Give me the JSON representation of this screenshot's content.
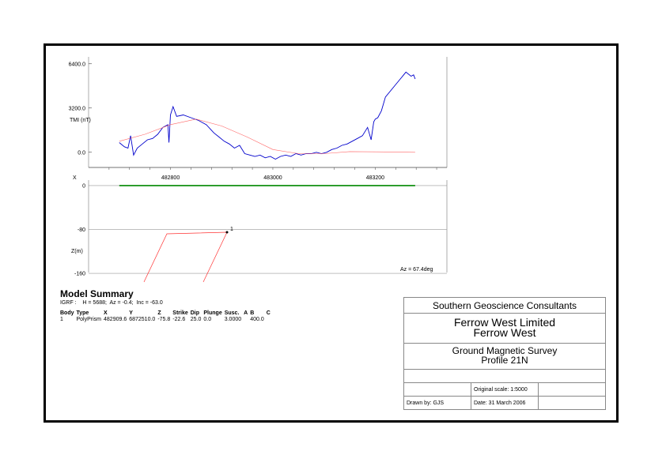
{
  "chart_data": [
    {
      "type": "line",
      "title": "",
      "xlabel": "",
      "ylabel": "TMI (nT)",
      "xlim": [
        482640,
        483340
      ],
      "ylim": [
        -1100,
        6900
      ],
      "yticks": [
        {
          "value": 6400,
          "label": "6400.0"
        },
        {
          "value": 3200,
          "label": "3200.0"
        },
        {
          "value": 0,
          "label": "0.0"
        }
      ],
      "xticks": [
        {
          "value": 482800,
          "label": "482800"
        },
        {
          "value": 483000,
          "label": "483000"
        },
        {
          "value": 483200,
          "label": "483200"
        }
      ],
      "series": [
        {
          "color": "#0000cc",
          "x": [
            482700,
            482710,
            482717,
            482722,
            482728,
            482735,
            482745,
            482755,
            482765,
            482775,
            482785,
            482795,
            482797,
            482800,
            482805,
            482812,
            482825,
            482840,
            482855,
            482870,
            482885,
            482895,
            482905,
            482915,
            482925,
            482935,
            482945,
            482955,
            482965,
            482975,
            482985,
            482995,
            483005,
            483015,
            483025,
            483035,
            483045,
            483055,
            483065,
            483075,
            483085,
            483095,
            483105,
            483115,
            483125,
            483135,
            483145,
            483155,
            483165,
            483175,
            483185,
            483192,
            483197,
            483200,
            483205,
            483212,
            483220,
            483240,
            483260,
            483270,
            483275,
            483278
          ],
          "y": [
            700,
            400,
            300,
            1200,
            -200,
            300,
            600,
            900,
            1000,
            1300,
            1800,
            2000,
            700,
            2700,
            3300,
            2600,
            2700,
            2500,
            2300,
            2000,
            1400,
            1100,
            800,
            600,
            300,
            500,
            -100,
            -200,
            -300,
            -200,
            -400,
            -300,
            -500,
            -300,
            -200,
            -300,
            -100,
            -200,
            -100,
            -100,
            0,
            -100,
            0,
            200,
            300,
            500,
            600,
            800,
            1000,
            1200,
            1800,
            900,
            2200,
            2400,
            2500,
            3000,
            4000,
            4900,
            5800,
            5500,
            5600,
            5300
          ]
        },
        {
          "color": "#ff6666",
          "x": [
            482700,
            482750,
            482800,
            482850,
            482900,
            482950,
            483000,
            483050,
            483100,
            483150,
            483200,
            483278
          ],
          "y": [
            800,
            1300,
            2000,
            2400,
            1900,
            1100,
            200,
            -100,
            -100,
            50,
            30,
            0
          ]
        }
      ]
    },
    {
      "type": "line",
      "title": "",
      "xlabel": "X",
      "ylabel": "Z(m)",
      "ylim": [
        -180,
        10
      ],
      "yticks": [
        {
          "value": 0,
          "label": "0"
        },
        {
          "value": -80,
          "label": "-80"
        },
        {
          "value": -160,
          "label": "-160"
        }
      ],
      "series": [
        {
          "color": "#008800",
          "x": [
            482700,
            483278
          ],
          "y": [
            0,
            0
          ]
        }
      ],
      "body": {
        "label": "1",
        "color": "#ff3333"
      },
      "annotation": "Az = 67.4deg"
    }
  ],
  "model_summary": {
    "title": "Model Summary",
    "igrf": "IGRF :    H = 5688;  Az = -0.4;  Inc = -63.0",
    "headers": [
      "Body",
      "Type",
      "X",
      "Y",
      "Z",
      "Strike",
      "Dip",
      "Plunge",
      "Susc.",
      "A",
      "B",
      "C"
    ],
    "row": [
      "1",
      "PolyPrism",
      "482909.6",
      "6872510.0",
      "-75.8",
      "-22.6",
      "25.0",
      "0.0",
      "3.0000",
      "",
      "400.0",
      ""
    ]
  },
  "title_block": {
    "company": "Southern Geoscience Consultants",
    "client": "Ferrow West Limited",
    "project": "Ferrow West",
    "survey": "Ground Magnetic Survey",
    "profile": "Profile 21N",
    "scale": "Original scale: 1:5000",
    "drawn_by": "Drawn by: GJS",
    "date": "Date: 31 March 2006"
  }
}
